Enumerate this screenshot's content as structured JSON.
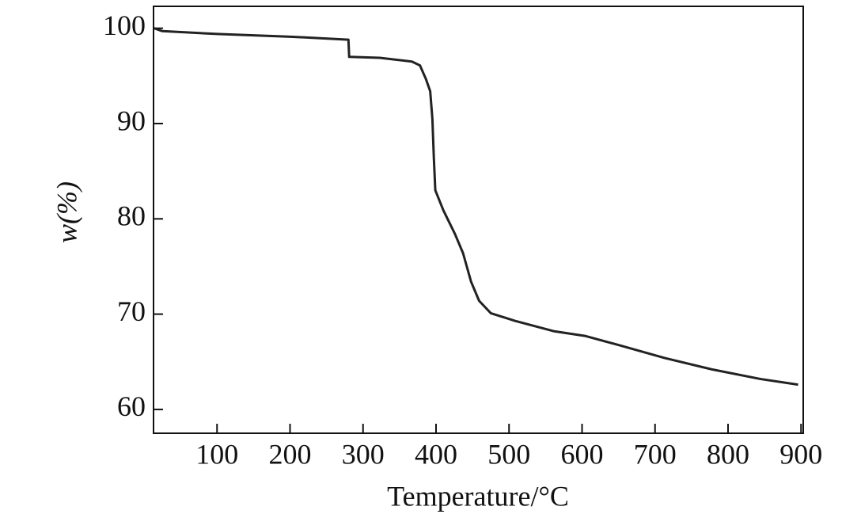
{
  "chart_data": {
    "type": "line",
    "x_label": "Temperature/°C",
    "y_label": "w(%)",
    "xlim": [
      13,
      903
    ],
    "xticks": [
      100,
      200,
      300,
      400,
      500,
      600,
      700,
      800,
      900
    ],
    "ylim": [
      57.5,
      102.3
    ],
    "yticks": [
      60,
      70,
      80,
      90,
      100
    ],
    "series": [
      {
        "color": "#222222",
        "x": [
          14,
          25,
          100,
          204,
          280,
          281,
          323,
          367,
          378,
          386,
          392,
          395,
          397,
          399,
          410,
          426,
          437,
          448,
          459,
          475,
          508,
          562,
          605,
          648,
          713,
          778,
          844,
          896
        ],
        "values": [
          100,
          99.7,
          99.4,
          99.1,
          98.8,
          97.0,
          96.9,
          96.5,
          96.1,
          94.7,
          93.4,
          90.5,
          86.4,
          83.0,
          80.9,
          78.4,
          76.4,
          73.4,
          71.4,
          70.1,
          69.3,
          68.2,
          67.7,
          66.8,
          65.4,
          64.2,
          63.2,
          62.6
        ]
      }
    ]
  }
}
